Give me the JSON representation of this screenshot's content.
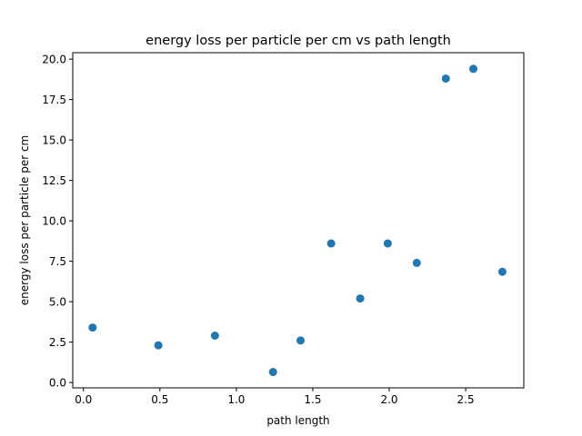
{
  "chart_data": {
    "type": "scatter",
    "title": "energy loss per particle per cm vs path length",
    "xlabel": "path length",
    "ylabel": "energy loss per particle per cm",
    "xlim": [
      -0.07,
      2.88
    ],
    "ylim": [
      -0.33,
      20.4
    ],
    "xticks": [
      0.0,
      0.5,
      1.0,
      1.5,
      2.0,
      2.5
    ],
    "xtick_labels": [
      "0.0",
      "0.5",
      "1.0",
      "1.5",
      "2.0",
      "2.5"
    ],
    "yticks": [
      0.0,
      2.5,
      5.0,
      7.5,
      10.0,
      12.5,
      15.0,
      17.5,
      20.0
    ],
    "ytick_labels": [
      "0.0",
      "2.5",
      "5.0",
      "7.5",
      "10.0",
      "12.5",
      "15.0",
      "17.5",
      "20.0"
    ],
    "grid": false,
    "marker_color": "#1f77b4",
    "points": [
      {
        "x": 0.06,
        "y": 3.4
      },
      {
        "x": 0.49,
        "y": 2.3
      },
      {
        "x": 0.86,
        "y": 2.9
      },
      {
        "x": 1.24,
        "y": 0.65
      },
      {
        "x": 1.42,
        "y": 2.6
      },
      {
        "x": 1.62,
        "y": 8.6
      },
      {
        "x": 1.81,
        "y": 5.2
      },
      {
        "x": 1.99,
        "y": 8.6
      },
      {
        "x": 2.18,
        "y": 7.4
      },
      {
        "x": 2.37,
        "y": 18.8
      },
      {
        "x": 2.55,
        "y": 19.4
      },
      {
        "x": 2.74,
        "y": 6.85
      }
    ]
  }
}
